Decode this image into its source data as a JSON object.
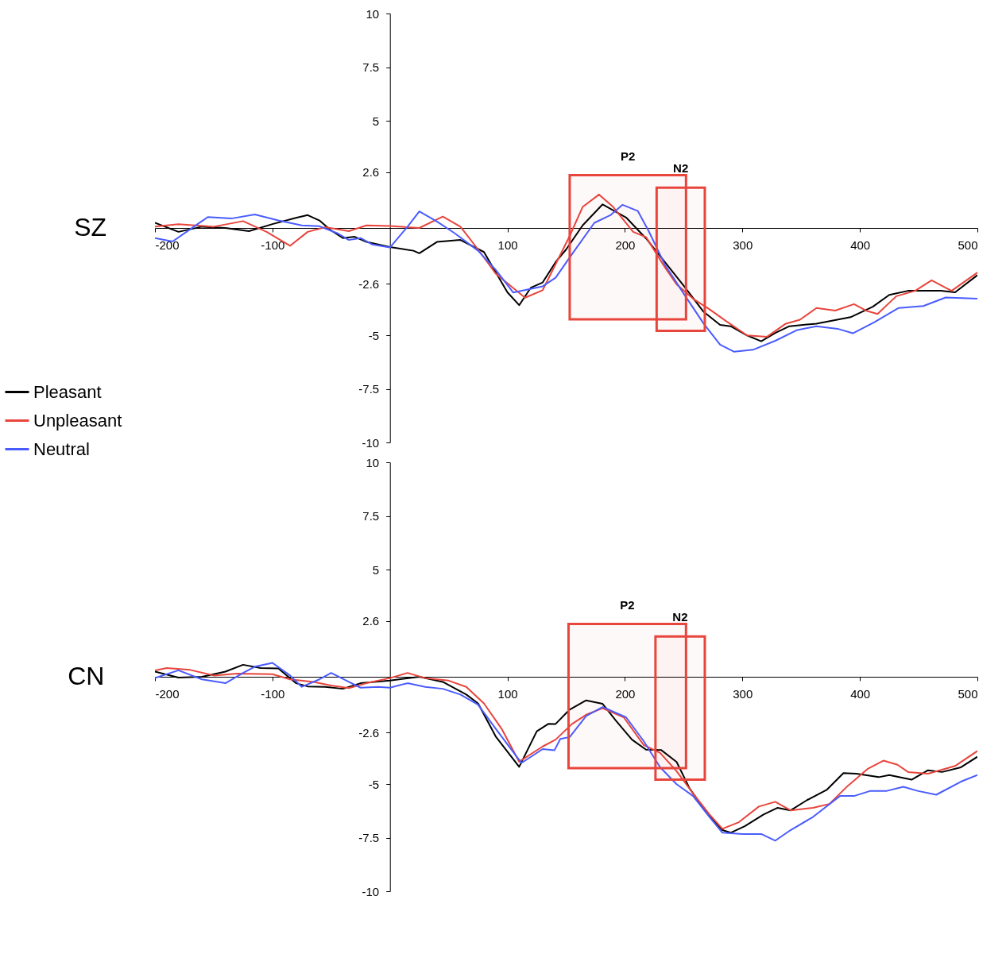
{
  "chart_data": [
    {
      "type": "line",
      "title": "SZ",
      "xlim": [
        -200,
        500
      ],
      "ylim": [
        -10,
        10
      ],
      "xticks": [
        -200,
        -100,
        100,
        200,
        300,
        400,
        500
      ],
      "yticks": [
        10,
        7.5,
        5,
        2.6,
        -2.6,
        -5,
        -7.5,
        -10
      ],
      "grid": false,
      "legend": "left",
      "line_style": "solid",
      "marker": "none",
      "bands": [
        {
          "axis": "x",
          "from": 153,
          "to": 252,
          "label": "P2",
          "color": "#e8453c"
        },
        {
          "axis": "x",
          "from": 227,
          "to": 268,
          "label": "N2",
          "color": "#e8453c"
        }
      ],
      "series": [
        {
          "name": "Pleasant",
          "color": "#000000",
          "x": [
            -200,
            -180,
            -160,
            -140,
            -120,
            -100,
            -80,
            -70,
            -60,
            -50,
            -40,
            -30,
            -20,
            0,
            20,
            25,
            40,
            60,
            80,
            100,
            110,
            120,
            130,
            141,
            150,
            164,
            181,
            201,
            218,
            234,
            250,
            267,
            281,
            290,
            304,
            316,
            328,
            340,
            363,
            392,
            411,
            425,
            441,
            469,
            481,
            500
          ],
          "values": [
            0.24,
            -0.18,
            0.06,
            0,
            -0.15,
            0.18,
            0.47,
            0.6,
            0.35,
            -0.12,
            -0.47,
            -0.41,
            -0.65,
            -0.89,
            -1.06,
            -1.18,
            -0.65,
            -0.56,
            -1.12,
            -3.0,
            -3.6,
            -2.78,
            -2.54,
            -1.59,
            -1.0,
            0.12,
            1.1,
            0.49,
            -0.49,
            -1.59,
            -2.69,
            -3.91,
            -4.52,
            -4.58,
            -5.01,
            -5.28,
            -4.89,
            -4.58,
            -4.46,
            -4.16,
            -3.67,
            -3.12,
            -2.93,
            -2.93,
            -3.0,
            -2.2
          ]
        },
        {
          "name": "Unpleasant",
          "color": "#e8453c",
          "x": [
            -200,
            -180,
            -150,
            -125,
            -105,
            -85,
            -70,
            -55,
            -35,
            -20,
            0,
            25,
            45,
            60,
            75,
            90,
            115,
            130,
            153,
            164,
            178,
            190,
            207,
            218,
            234,
            244,
            258,
            272,
            286,
            304,
            321,
            337,
            349,
            363,
            379,
            395,
            405,
            415,
            431,
            447,
            461,
            478,
            500
          ],
          "values": [
            0.06,
            0.18,
            0.06,
            0.32,
            -0.18,
            -0.83,
            -0.18,
            0.04,
            -0.15,
            0.12,
            0.09,
            0,
            0.53,
            0.06,
            -1.0,
            -2.13,
            -3.25,
            -2.9,
            -0.37,
            0.98,
            1.56,
            0.98,
            -0.18,
            -0.43,
            -1.83,
            -2.63,
            -3.3,
            -3.79,
            -4.34,
            -5.01,
            -5.07,
            -4.46,
            -4.28,
            -3.73,
            -3.85,
            -3.55,
            -3.85,
            -4.01,
            -3.18,
            -2.93,
            -2.44,
            -2.93,
            -2.08
          ]
        },
        {
          "name": "Neutral",
          "color": "#4a5cff",
          "x": [
            -200,
            -185,
            -170,
            -155,
            -135,
            -115,
            -95,
            -75,
            -60,
            -45,
            -35,
            -25,
            -15,
            0,
            15,
            25,
            40,
            55,
            75,
            90,
            105,
            130,
            141,
            155,
            174,
            188,
            198,
            211,
            220,
            234,
            250,
            267,
            281,
            293,
            309,
            328,
            346,
            363,
            381,
            394,
            412,
            433,
            454,
            473,
            500
          ],
          "values": [
            -0.47,
            -0.63,
            -0.06,
            0.51,
            0.44,
            0.63,
            0.35,
            0.12,
            0.08,
            -0.24,
            -0.56,
            -0.47,
            -0.77,
            -0.91,
            0.06,
            0.77,
            0.3,
            -0.24,
            -1.06,
            -1.95,
            -3.01,
            -2.72,
            -2.32,
            -1.22,
            0.24,
            0.61,
            1.08,
            0.79,
            -0.12,
            -1.71,
            -3.06,
            -4.46,
            -5.44,
            -5.77,
            -5.68,
            -5.26,
            -4.77,
            -4.58,
            -4.7,
            -4.91,
            -4.4,
            -3.73,
            -3.64,
            -3.24,
            -3.3
          ]
        }
      ]
    },
    {
      "type": "line",
      "title": "CN",
      "xlim": [
        -200,
        500
      ],
      "ylim": [
        -10,
        10
      ],
      "xticks": [
        -200,
        -100,
        100,
        200,
        300,
        400,
        500
      ],
      "yticks": [
        10,
        7.5,
        5,
        2.6,
        -2.6,
        -5,
        -7.5,
        -10
      ],
      "grid": false,
      "line_style": "solid",
      "marker": "none",
      "bands": [
        {
          "axis": "x",
          "from": 152,
          "to": 252,
          "label": "P2",
          "color": "#e8453c"
        },
        {
          "axis": "x",
          "from": 226,
          "to": 268,
          "label": "N2",
          "color": "#e8453c"
        }
      ],
      "series": [
        {
          "name": "Pleasant",
          "color": "#000000",
          "x": [
            -200,
            -180,
            -160,
            -140,
            -125,
            -110,
            -95,
            -80,
            -70,
            -55,
            -40,
            -25,
            0,
            25,
            45,
            65,
            75,
            90,
            110,
            125,
            135,
            141,
            153,
            167,
            181,
            192,
            206,
            218,
            231,
            244,
            255,
            269,
            283,
            290,
            302,
            318,
            330,
            341,
            355,
            372,
            386,
            397,
            416,
            425,
            444,
            458,
            470,
            486,
            500
          ],
          "values": [
            0.24,
            -0.04,
            0,
            0.24,
            0.56,
            0.41,
            0.39,
            -0.3,
            -0.45,
            -0.47,
            -0.56,
            -0.3,
            -0.18,
            0,
            -0.24,
            -0.83,
            -1.24,
            -2.78,
            -4.2,
            -2.54,
            -2.19,
            -2.2,
            -1.53,
            -1.1,
            -1.26,
            -2.02,
            -2.93,
            -3.4,
            -3.42,
            -3.97,
            -5.2,
            -6.3,
            -7.15,
            -7.27,
            -6.97,
            -6.42,
            -6.11,
            -6.23,
            -5.75,
            -5.26,
            -4.49,
            -4.52,
            -4.68,
            -4.58,
            -4.8,
            -4.36,
            -4.44,
            -4.22,
            -3.73
          ]
        },
        {
          "name": "Unpleasant",
          "color": "#e8453c",
          "x": [
            -200,
            -190,
            -170,
            -150,
            -130,
            -100,
            -85,
            -65,
            -50,
            -35,
            -20,
            0,
            15,
            30,
            50,
            65,
            80,
            95,
            110,
            130,
            141,
            155,
            167,
            181,
            199,
            216,
            230,
            244,
            258,
            272,
            283,
            297,
            314,
            328,
            341,
            360,
            374,
            390,
            407,
            420,
            432,
            441,
            458,
            481,
            500
          ],
          "values": [
            0.3,
            0.41,
            0.32,
            0.06,
            0.15,
            0.12,
            -0.12,
            -0.24,
            -0.41,
            -0.53,
            -0.3,
            -0.06,
            0.18,
            -0.06,
            -0.18,
            -0.47,
            -1.24,
            -2.42,
            -3.96,
            -3.25,
            -2.93,
            -2.2,
            -1.77,
            -1.47,
            -1.89,
            -3.18,
            -3.55,
            -4.4,
            -5.44,
            -6.42,
            -7.09,
            -6.78,
            -6.05,
            -5.83,
            -6.23,
            -6.11,
            -5.93,
            -5.07,
            -4.28,
            -3.91,
            -4.1,
            -4.44,
            -4.52,
            -4.16,
            -3.46
          ]
        },
        {
          "name": "Neutral",
          "color": "#4a5cff",
          "x": [
            -200,
            -180,
            -160,
            -140,
            -125,
            -115,
            -100,
            -85,
            -75,
            -60,
            -50,
            -35,
            -25,
            -10,
            0,
            15,
            30,
            45,
            60,
            75,
            90,
            112,
            130,
            140,
            145,
            153,
            167,
            181,
            201,
            216,
            230,
            244,
            258,
            272,
            283,
            300,
            316,
            328,
            341,
            360,
            383,
            395,
            409,
            423,
            437,
            449,
            465,
            486,
            500
          ],
          "values": [
            -0.06,
            0.3,
            -0.12,
            -0.3,
            0.18,
            0.47,
            0.65,
            0.06,
            -0.47,
            -0.12,
            0.18,
            -0.24,
            -0.51,
            -0.47,
            -0.51,
            -0.3,
            -0.47,
            -0.56,
            -0.83,
            -1.3,
            -2.42,
            -4.02,
            -3.37,
            -3.43,
            -2.9,
            -2.81,
            -1.83,
            -1.41,
            -1.89,
            -3.0,
            -4.22,
            -5.01,
            -5.56,
            -6.54,
            -7.27,
            -7.33,
            -7.33,
            -7.64,
            -7.15,
            -6.54,
            -5.56,
            -5.56,
            -5.32,
            -5.32,
            -5.13,
            -5.32,
            -5.5,
            -4.89,
            -4.58
          ]
        }
      ]
    }
  ]
}
